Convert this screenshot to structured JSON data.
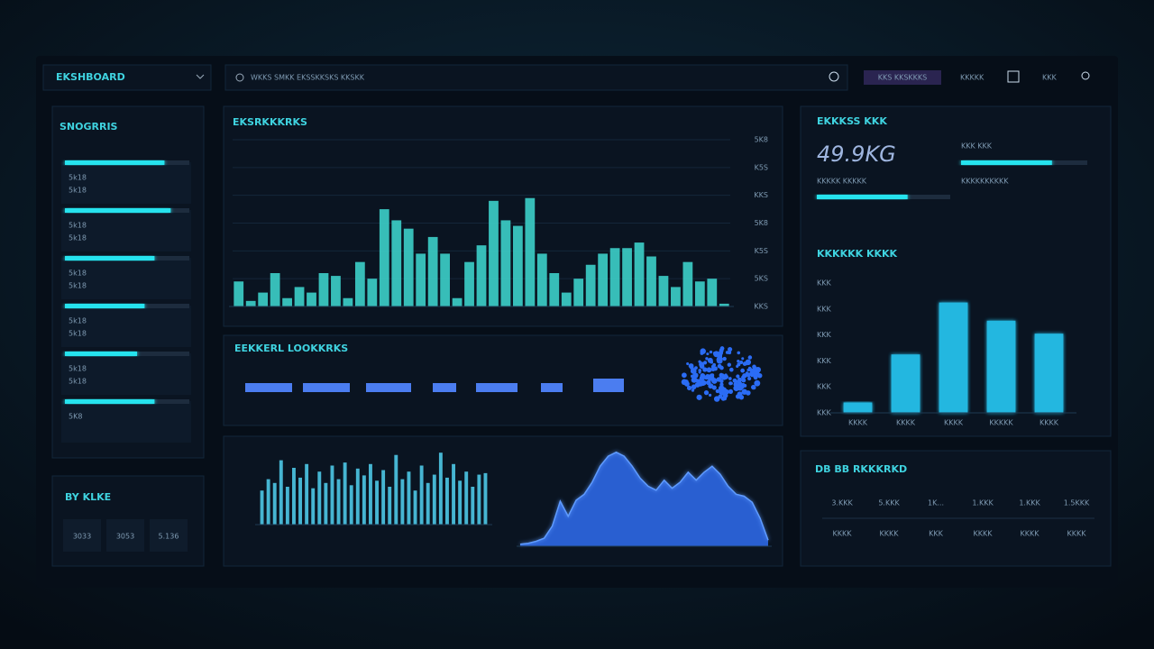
{
  "topbar": {
    "brand": "EKSHBOARD",
    "search": "WKKS SMKK   EKSSKKSKS   KKSKK",
    "badge": "KKS KKSKKKS",
    "links": [
      "KKKKK",
      "KKK"
    ]
  },
  "sidebar": {
    "title": "SNOGRRIS",
    "items": [
      {
        "progress": 80,
        "labels": [
          "5k18",
          "5k18"
        ]
      },
      {
        "progress": 85,
        "labels": [
          "5k18",
          "5k18"
        ]
      },
      {
        "progress": 72,
        "labels": [
          "5k18",
          "5k18"
        ]
      },
      {
        "progress": 64,
        "labels": [
          "5k18",
          "5k18"
        ]
      },
      {
        "progress": 58,
        "labels": [
          "5k18",
          "5k18"
        ]
      },
      {
        "progress": 72,
        "labels": [
          "5K8"
        ]
      }
    ]
  },
  "filters": {
    "title": "BY KLKE",
    "buttons": [
      "3033",
      "3053",
      "5.136"
    ]
  },
  "middle_panel": {
    "title": "EEKKERL LOOKKRKS"
  },
  "kpi": {
    "title": "EKKKSS KKK",
    "value": "49.9KG",
    "caption": "KKKKK KKKKK",
    "progress": 68,
    "side_label": "KKK KKK",
    "side_progress": 72,
    "side_caption": "KKKKKKKKKK"
  },
  "table": {
    "title": "DB BB RKKKRKD",
    "rows": [
      [
        "3.KKK",
        "5.KKK",
        "1K...",
        "1.KKK",
        "1.KKK",
        "1.5KKK"
      ],
      [
        "KKKK",
        "KKKK",
        "KKK",
        "KKKK",
        "KKKK",
        "KKKK"
      ]
    ]
  },
  "chart_data": [
    {
      "type": "bar",
      "title": "EKSRKKKRKS",
      "color": "#3ccfc9",
      "grid": true,
      "values": [
        0.9,
        0.2,
        0.5,
        1.2,
        0.3,
        0.7,
        0.5,
        1.2,
        1.1,
        0.3,
        1.6,
        1.0,
        3.5,
        3.1,
        2.8,
        1.9,
        2.5,
        1.9,
        0.3,
        1.6,
        2.2,
        3.8,
        3.1,
        2.9,
        3.9,
        1.9,
        1.2,
        0.5,
        1.0,
        1.5,
        1.9,
        2.1,
        2.1,
        2.3,
        1.8,
        1.1,
        0.7,
        1.6,
        0.9,
        1.0,
        0.1
      ],
      "ylim": [
        0,
        6
      ],
      "yticks": [
        {
          "value": 0,
          "label": "KKS"
        },
        {
          "value": 1,
          "label": "5KS"
        },
        {
          "value": 2,
          "label": "K5S"
        },
        {
          "value": 3,
          "label": "5K8"
        },
        {
          "value": 4,
          "label": "KKS"
        },
        {
          "value": 5,
          "label": "K5S"
        },
        {
          "value": 6,
          "label": "5K8"
        }
      ]
    },
    {
      "type": "bar",
      "color": "#4cc6e6",
      "ylim": [
        0,
        100
      ],
      "values": [
        45,
        60,
        55,
        85,
        50,
        75,
        62,
        80,
        48,
        70,
        55,
        78,
        60,
        82,
        52,
        74,
        65,
        80,
        58,
        72,
        50,
        92,
        60,
        70,
        45,
        78,
        55,
        66,
        95,
        62,
        80,
        58,
        70,
        50,
        66,
        68
      ]
    },
    {
      "type": "area",
      "color": "#2f6cf0",
      "ylim": [
        0,
        100
      ],
      "values": [
        2,
        3,
        5,
        8,
        20,
        45,
        30,
        46,
        52,
        64,
        80,
        90,
        94,
        90,
        80,
        68,
        60,
        56,
        66,
        58,
        64,
        74,
        66,
        74,
        80,
        72,
        60,
        52,
        50,
        44,
        28,
        6
      ]
    },
    {
      "type": "bar",
      "title": "KKKKKK KKKK",
      "color": "#27c9f5",
      "categories": [
        "KKKK",
        "KKKK",
        "KKKK",
        "KKKKK",
        "KKKK"
      ],
      "values": [
        0.8,
        4.5,
        8.5,
        7.1,
        6.1
      ],
      "ylim": [
        0,
        10
      ],
      "yticks": [
        {
          "value": 0,
          "label": "KKK"
        },
        {
          "value": 2,
          "label": "KKK"
        },
        {
          "value": 4,
          "label": "KKK"
        },
        {
          "value": 6,
          "label": "KKK"
        },
        {
          "value": 8,
          "label": "KKK"
        },
        {
          "value": 10,
          "label": "KKK"
        }
      ]
    }
  ]
}
